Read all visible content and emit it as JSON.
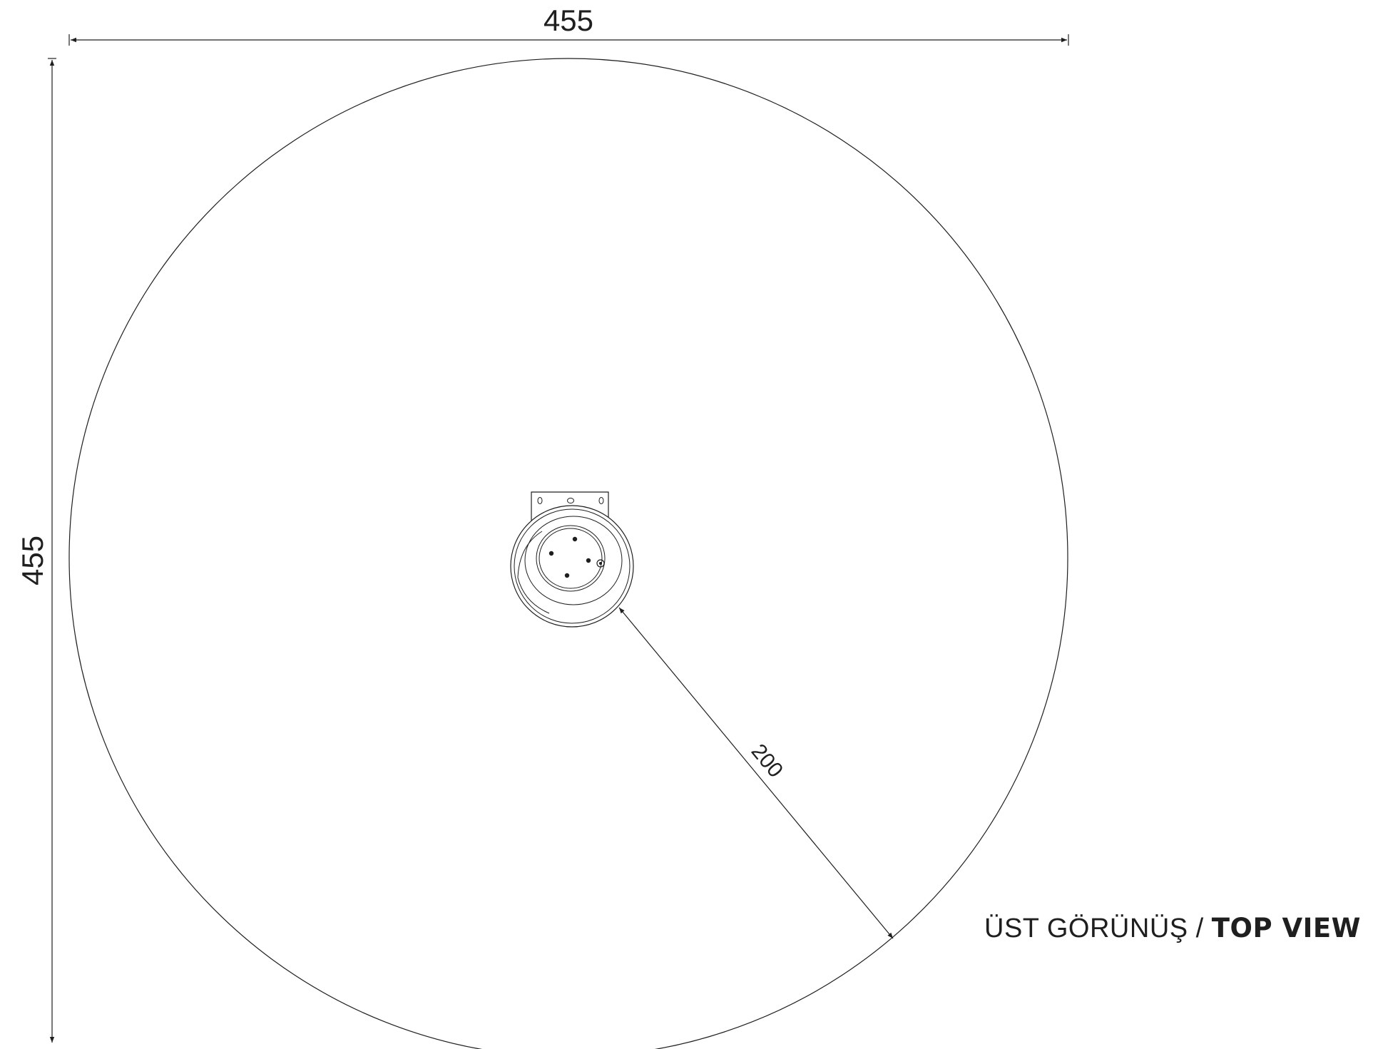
{
  "drawing": {
    "width_dimension": "455",
    "height_dimension": "455",
    "radius_dimension": "200",
    "line_color": "#1f1f1f"
  },
  "caption": {
    "turkish": "ÜST GÖRÜNÜŞ /",
    "english": "TOP VIEW"
  }
}
